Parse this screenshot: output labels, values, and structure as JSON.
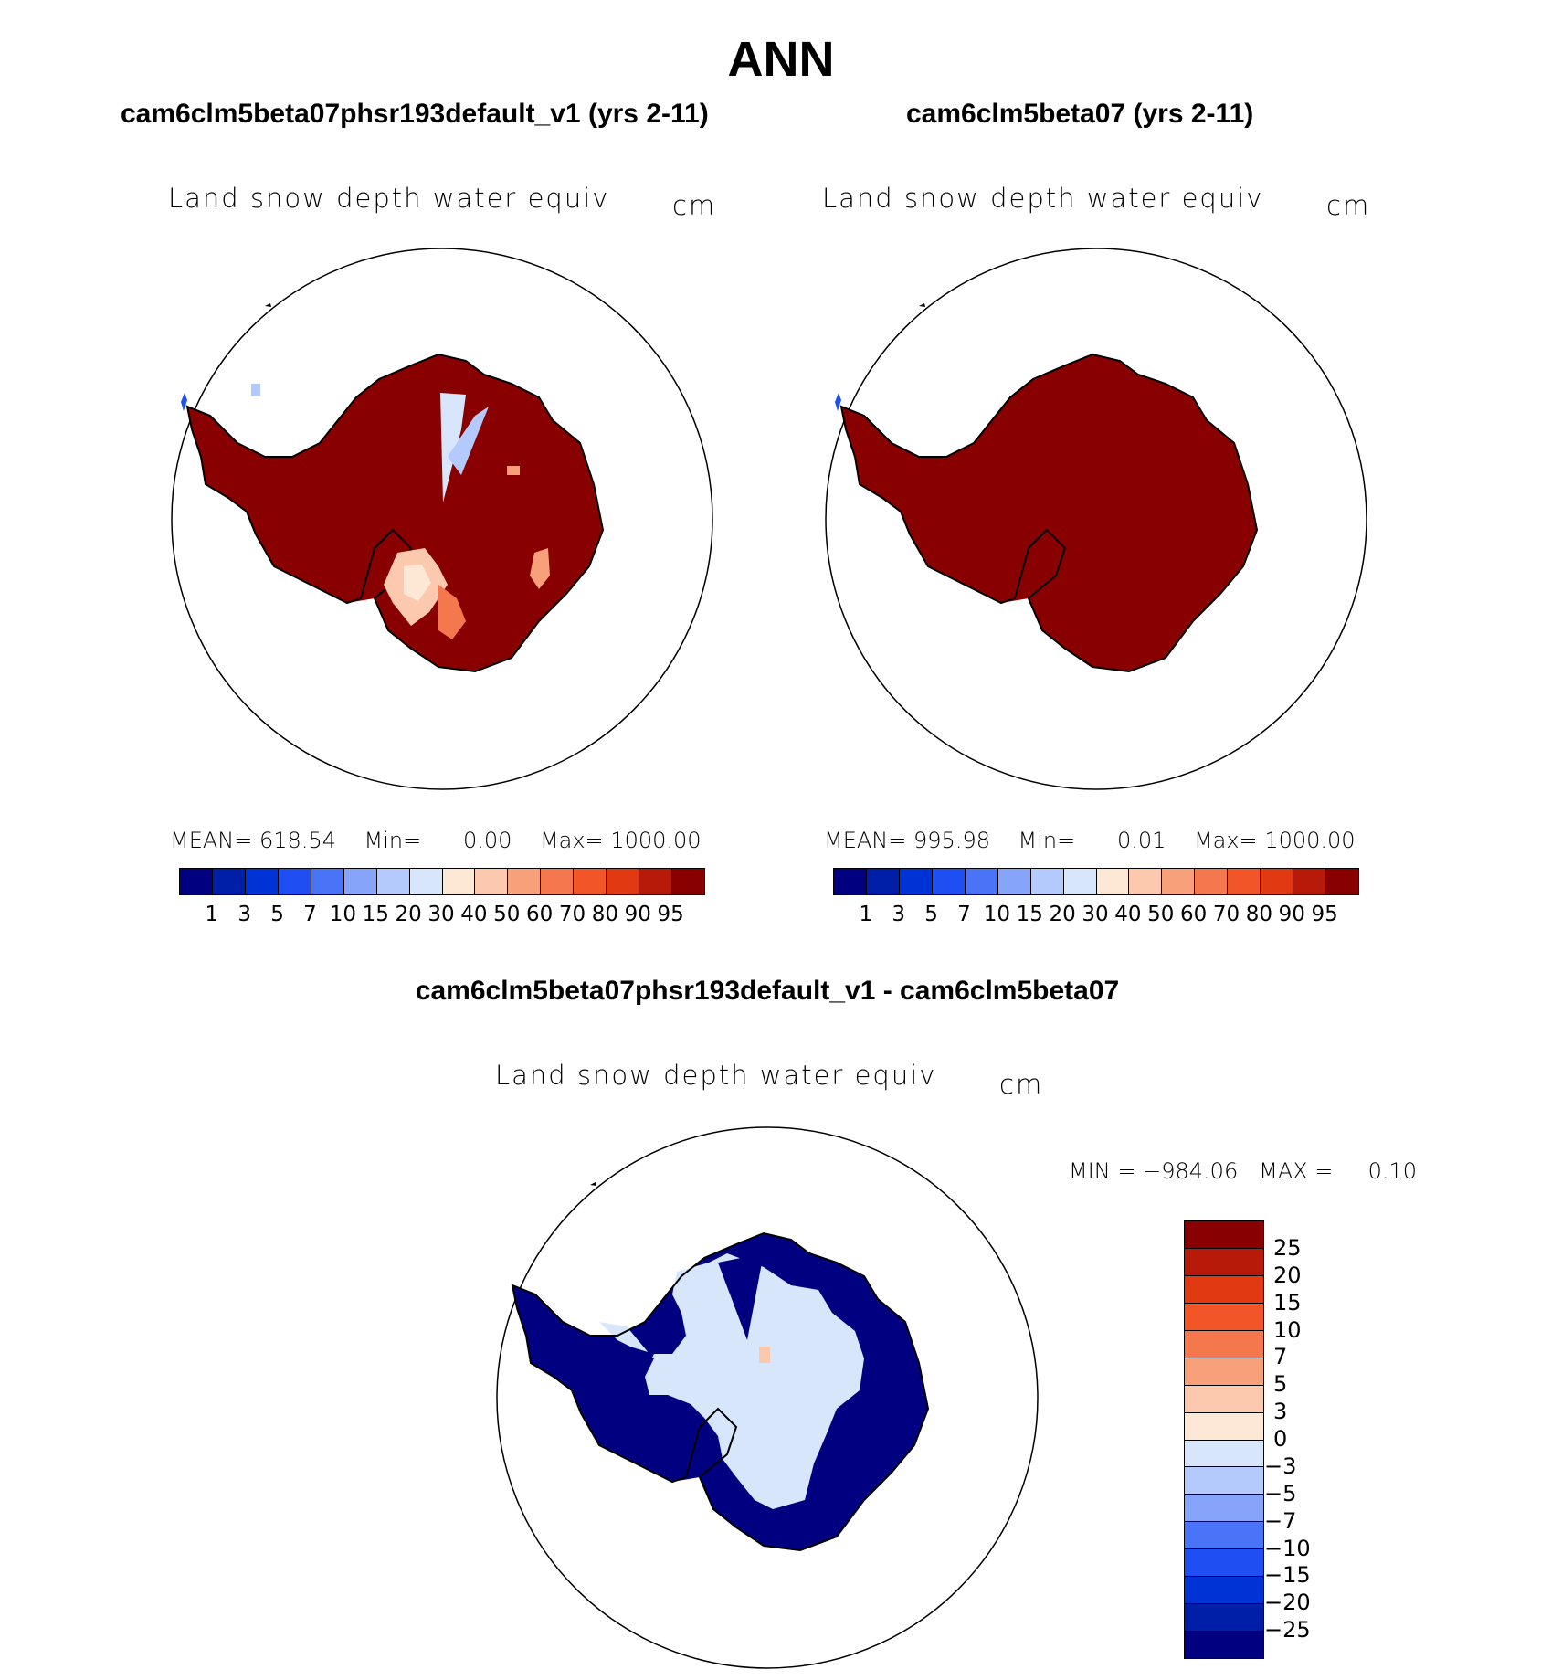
{
  "figure": {
    "season": "ANN",
    "panel_left": {
      "case_title": "cam6clm5beta07phsr193default_v1 (yrs 2-11)",
      "variable": "Land snow depth water equiv",
      "units": "cm",
      "stats": {
        "mean_label": "MEAN=",
        "mean": "618.54",
        "min_label": "Min=",
        "min": "0.00",
        "max_label": "Max=",
        "max": "1000.00"
      }
    },
    "panel_right": {
      "case_title": "cam6clm5beta07 (yrs 2-11)",
      "variable": "Land snow depth water equiv",
      "units": "cm",
      "stats": {
        "mean_label": "MEAN=",
        "mean": "995.98",
        "min_label": "Min=",
        "min": "0.01",
        "max_label": "Max=",
        "max": "1000.00"
      }
    },
    "panel_diff": {
      "case_title": "cam6clm5beta07phsr193default_v1 - cam6clm5beta07",
      "variable": "Land snow depth water equiv",
      "units": "cm",
      "stats": {
        "min_label": "MIN =",
        "min": "−984.06",
        "max_label": "MAX =",
        "max": "0.10"
      }
    }
  },
  "colorbar_abs": {
    "colors": [
      "#000080",
      "#001fa8",
      "#0033d6",
      "#1f4ff2",
      "#4a74f7",
      "#86a4fa",
      "#b4c9fc",
      "#d8e6fc",
      "#fde8d6",
      "#fcc8ae",
      "#f8a07a",
      "#f5774d",
      "#f25528",
      "#e13a12",
      "#b81a0a",
      "#880000"
    ],
    "labels": [
      "1",
      "3",
      "5",
      "7",
      "10",
      "15",
      "20",
      "30",
      "40",
      "50",
      "60",
      "70",
      "80",
      "90",
      "95"
    ]
  },
  "colorbar_diff": {
    "colors_top_to_bottom": [
      "#880000",
      "#b81a0a",
      "#e13a12",
      "#f25528",
      "#f5774d",
      "#f8a07a",
      "#fcc8ae",
      "#fde8d6",
      "#d8e6fc",
      "#b4c9fc",
      "#86a4fa",
      "#4a74f7",
      "#1f4ff2",
      "#0033d6",
      "#001fa8",
      "#000080"
    ],
    "labels_top_to_bottom": [
      "25",
      "20",
      "15",
      "10",
      "7",
      "5",
      "3",
      "0",
      "−3",
      "−5",
      "−7",
      "−10",
      "−15",
      "−20",
      "−25"
    ]
  },
  "map_colors": {
    "land_high": "#880000",
    "light_blue": "#d8e6fc",
    "dark_blue": "#000080"
  }
}
